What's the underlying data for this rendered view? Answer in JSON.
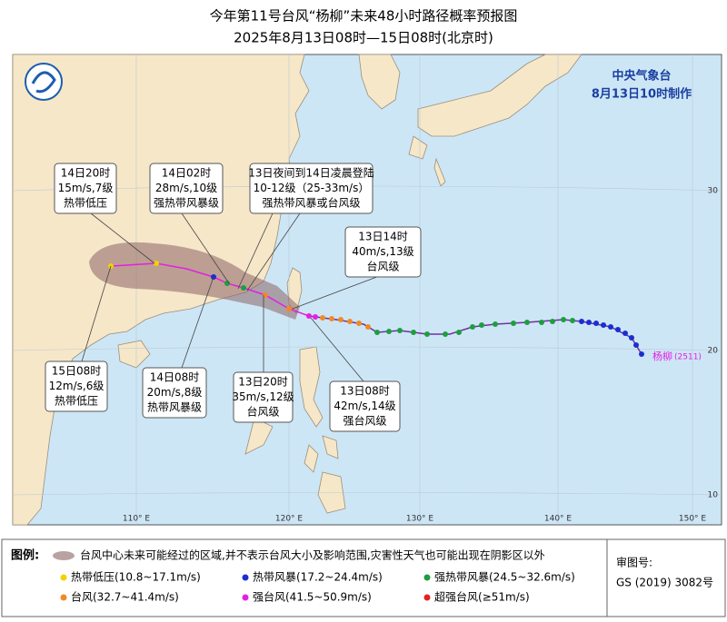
{
  "header": {
    "title": "今年第11号台风“杨柳”未来48小时路径概率预报图",
    "subtitle": "2025年8月13日08时—15日08时(北京时)"
  },
  "agency": {
    "name": "中央气象台",
    "issued": "8月13日10时制作"
  },
  "storm": {
    "name": "杨柳",
    "id": "(2511)"
  },
  "annotations": [
    {
      "lines": [
        "14日20时",
        "15m/s,7级",
        "热带低压"
      ]
    },
    {
      "lines": [
        "14日02时",
        "28m/s,10级",
        "强热带风暴级"
      ]
    },
    {
      "lines": [
        "13日夜间到14日凌晨登陆",
        "10-12级（25-33m/s）",
        "强热带风暴或台风级"
      ]
    },
    {
      "lines": [
        "13日14时",
        "40m/s,13级",
        "台风级"
      ]
    },
    {
      "lines": [
        "15日08时",
        "12m/s,6级",
        "热带低压"
      ]
    },
    {
      "lines": [
        "14日08时",
        "20m/s,8级",
        "热带风暴级"
      ]
    },
    {
      "lines": [
        "13日20时",
        "35m/s,12级",
        "台风级"
      ]
    },
    {
      "lines": [
        "13日08时",
        "42m/s,14级",
        "强台风级"
      ]
    }
  ],
  "lon_labels": [
    "110° E",
    "120° E",
    "130° E",
    "140° E",
    "150° E"
  ],
  "lat_labels": [
    "30",
    "20",
    "10"
  ],
  "legend": {
    "title": "图例:",
    "cone_text": "台风中心未来可能经过的区域,并不表示台风大小及影响范围,灾害性天气也可能出现在阴影区以外",
    "items": [
      {
        "label": "热带低压(10.8~17.1m/s)",
        "color": "#f2d200"
      },
      {
        "label": "热带风暴(17.2~24.4m/s)",
        "color": "#1a2fd0"
      },
      {
        "label": "强热带风暴(24.5~32.6m/s)",
        "color": "#1e9e3e"
      },
      {
        "label": "台风(32.7~41.4m/s)",
        "color": "#f08a24"
      },
      {
        "label": "强台风(41.5~50.9m/s)",
        "color": "#e51ee5"
      },
      {
        "label": "超强台风(≥51m/s)",
        "color": "#e52020"
      }
    ]
  },
  "approval": {
    "label": "审图号:",
    "number": "GS (2019) 3082号"
  }
}
